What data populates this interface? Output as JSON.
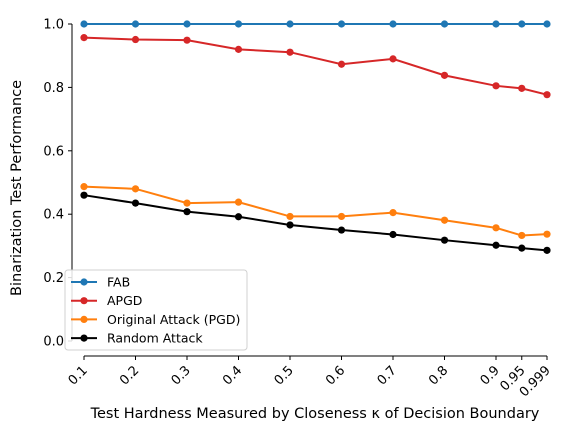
{
  "chart_data": {
    "type": "line",
    "xlabel": "Test Hardness Measured by Closeness κ of Decision Boundary",
    "ylabel": "Binarization Test Performance",
    "x": [
      0.1,
      0.2,
      0.3,
      0.4,
      0.5,
      0.6,
      0.7,
      0.8,
      0.9,
      0.95,
      0.999
    ],
    "xtick_labels": [
      "0.1",
      "0.2",
      "0.3",
      "0.4",
      "0.5",
      "0.6",
      "0.7",
      "0.8",
      "0.9",
      "0.95",
      "0.999"
    ],
    "yticks": [
      0.0,
      0.2,
      0.4,
      0.6,
      0.8,
      1.0
    ],
    "ytick_labels": [
      "0.0",
      "0.2",
      "0.4",
      "0.6",
      "0.8",
      "1.0"
    ],
    "xlim": [
      0.1,
      0.999
    ],
    "ylim": [
      0.0,
      1.0
    ],
    "grid": false,
    "legend_position": "lower-left",
    "series": [
      {
        "name": "FAB",
        "color": "#1f77b4",
        "values": [
          1.0,
          1.0,
          1.0,
          1.0,
          1.0,
          1.0,
          1.0,
          1.0,
          1.0,
          1.0,
          1.0
        ]
      },
      {
        "name": "APGD",
        "color": "#d62728",
        "values": [
          0.957,
          0.951,
          0.949,
          0.92,
          0.911,
          0.873,
          0.89,
          0.838,
          0.805,
          0.797,
          0.777
        ]
      },
      {
        "name": "Original Attack (PGD)",
        "color": "#ff7f0e",
        "values": [
          0.487,
          0.48,
          0.435,
          0.438,
          0.393,
          0.393,
          0.405,
          0.381,
          0.357,
          0.333,
          0.337
        ]
      },
      {
        "name": "Random Attack",
        "color": "#000000",
        "values": [
          0.46,
          0.435,
          0.408,
          0.392,
          0.366,
          0.35,
          0.336,
          0.318,
          0.302,
          0.293,
          0.286
        ]
      }
    ]
  }
}
